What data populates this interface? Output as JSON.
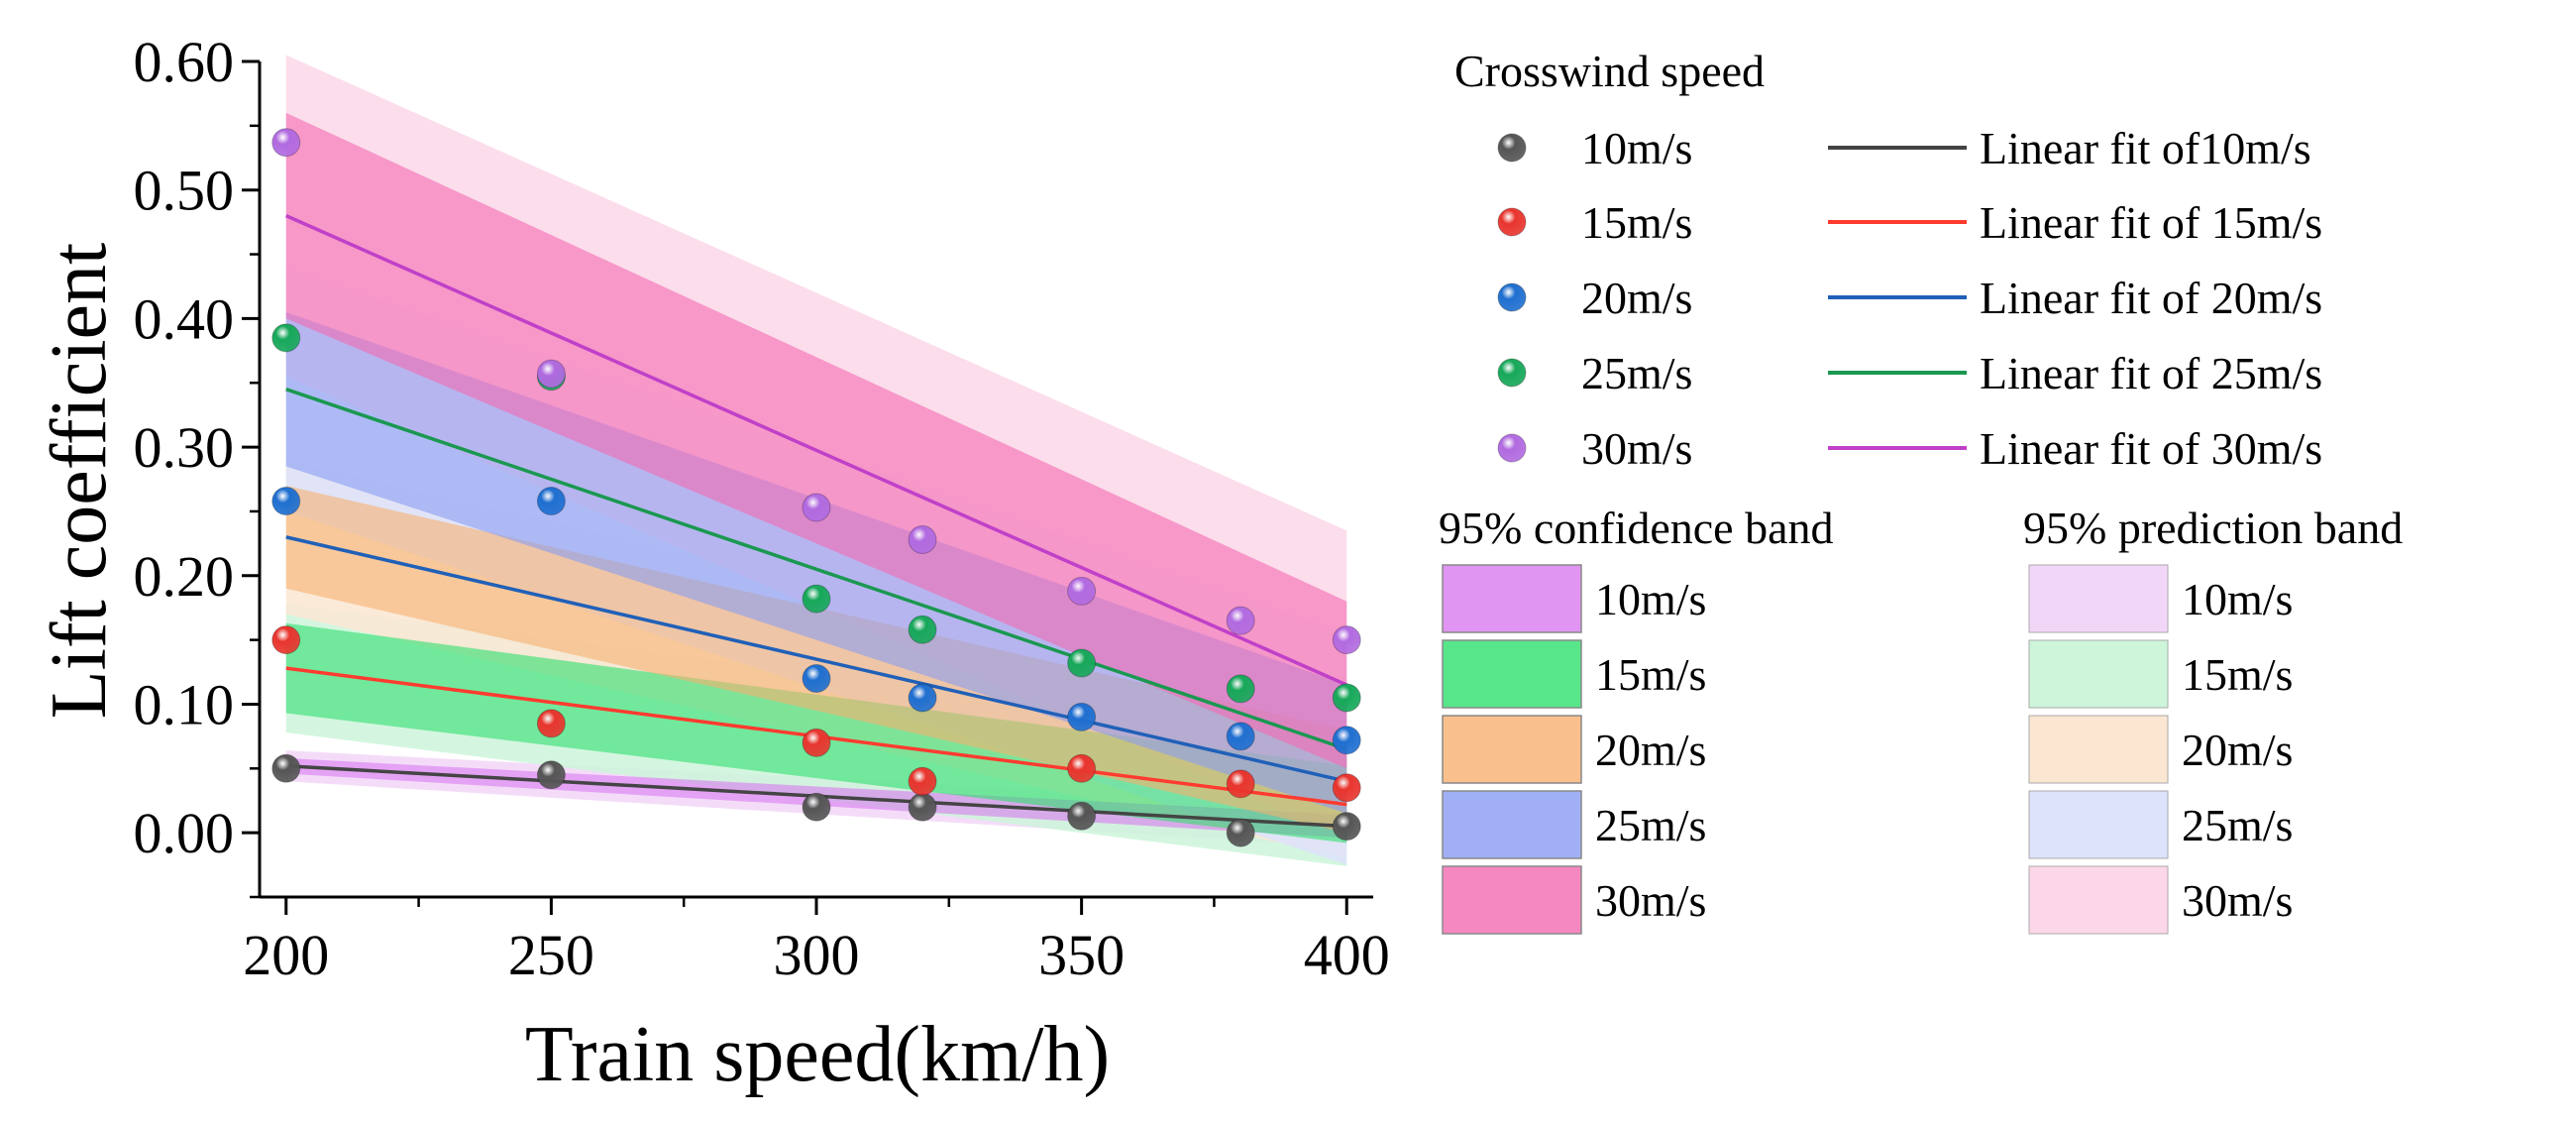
{
  "chart_data": {
    "type": "scatter",
    "xlabel": "Train speed(km/h)",
    "ylabel": "Lift coefficient",
    "xlim": [
      195,
      405
    ],
    "ylim": [
      -0.05,
      0.6
    ],
    "x_ticks": [
      200,
      250,
      300,
      350,
      400
    ],
    "x_tick_labels": [
      "200",
      "250",
      "300",
      "350",
      "400"
    ],
    "y_ticks": [
      0.0,
      0.1,
      0.2,
      0.3,
      0.4,
      0.5,
      0.6
    ],
    "y_tick_labels": [
      "0.00",
      "0.10",
      "0.20",
      "0.30",
      "0.40",
      "0.50",
      "0.60"
    ],
    "x": [
      200,
      250,
      300,
      320,
      350,
      380,
      400
    ],
    "series": [
      {
        "name": "10m/s",
        "color": "#555555",
        "line_color": "#444444",
        "values": [
          0.05,
          0.045,
          0.02,
          0.02,
          0.013,
          0.0,
          0.005
        ],
        "fit": [
          0.052,
          0.005
        ],
        "conf_halfwidth": [
          0.006,
          0.009
        ],
        "pred_halfwidth": [
          0.012,
          0.016
        ],
        "conf_color": "#d97bf0",
        "pred_color": "#f2d6f8"
      },
      {
        "name": "15m/s",
        "color": "#e8352e",
        "line_color": "#ff3b30",
        "values": [
          0.15,
          0.085,
          0.07,
          0.04,
          0.05,
          0.038,
          0.035
        ],
        "fit": [
          0.128,
          0.022
        ],
        "conf_halfwidth": [
          0.035,
          0.03
        ],
        "pred_halfwidth": [
          0.05,
          0.048
        ],
        "conf_color": "#2ee06e",
        "pred_color": "#ccf5da"
      },
      {
        "name": "20m/s",
        "color": "#1f6fd0",
        "line_color": "#2060b8",
        "values": [
          0.258,
          0.258,
          0.12,
          0.105,
          0.09,
          0.075,
          0.072
        ],
        "fit": [
          0.23,
          0.04
        ],
        "conf_halfwidth": [
          0.04,
          0.04
        ],
        "pred_halfwidth": [
          0.06,
          0.06
        ],
        "conf_color": "#f7b070",
        "pred_color": "#fbe6d2"
      },
      {
        "name": "25m/s",
        "color": "#17a85a",
        "line_color": "#1a9850",
        "values": [
          0.385,
          0.355,
          0.182,
          0.158,
          0.132,
          0.112,
          0.105
        ],
        "fit": [
          0.345,
          0.065
        ],
        "conf_halfwidth": [
          0.06,
          0.05
        ],
        "pred_halfwidth": [
          0.095,
          0.09
        ],
        "conf_color": "#8a9cf2",
        "pred_color": "#dce3fb"
      },
      {
        "name": "30m/s",
        "color": "#b16ae0",
        "line_color": "#c040c8",
        "values": [
          0.537,
          0.357,
          0.253,
          0.228,
          0.188,
          0.165,
          0.15
        ],
        "fit": [
          0.48,
          0.115
        ],
        "conf_halfwidth": [
          0.08,
          0.065
        ],
        "pred_halfwidth": [
          0.125,
          0.12
        ],
        "conf_color": "#f46ab2",
        "pred_color": "#fcd7e8"
      }
    ],
    "legend": {
      "title": "Crosswind speed",
      "marker_labels": [
        "10m/s",
        "15m/s",
        "20m/s",
        "25m/s",
        "30m/s"
      ],
      "fit_labels": [
        "Linear fit of10m/s",
        "Linear fit of 15m/s",
        "Linear fit of 20m/s",
        "Linear fit of 25m/s",
        "Linear fit of 30m/s"
      ],
      "confidence_title": "95% confidence band",
      "prediction_title": "95% prediction band",
      "band_labels": [
        "10m/s",
        "15m/s",
        "20m/s",
        "25m/s",
        "30m/s"
      ]
    }
  }
}
